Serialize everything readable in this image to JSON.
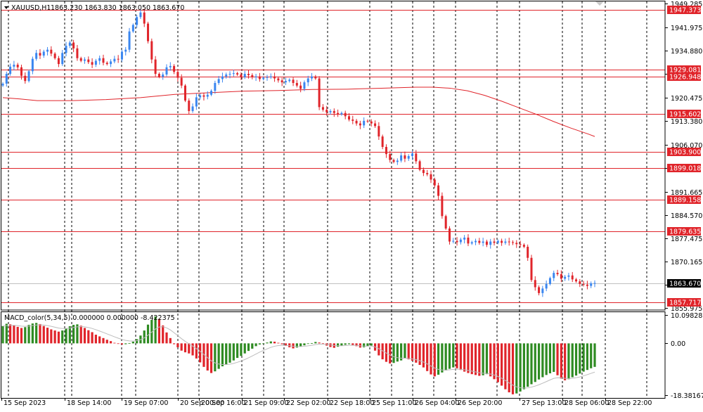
{
  "header": {
    "symbol": "XAUUSD,H1",
    "ohlc": "1863.230 1863.830 1863.050 1863.670"
  },
  "macd": {
    "label": "MACD_color(5,34,5) 0.000000 0.000000 -8.422375",
    "ticks": [
      "10.098283",
      "0.00",
      "-18.381675"
    ],
    "tick_values": [
      10.098283,
      0,
      -18.381675
    ],
    "ylim": [
      -19.5,
      11.4
    ],
    "histogram": [
      [
        6.2,
        7.0,
        6.8,
        6.4,
        5.9,
        5.5,
        5.8,
        6.6,
        7.1,
        7.3,
        6.9,
        6.2,
        5.6,
        5.0,
        4.6,
        4.2,
        4.6,
        5.4,
        6.1,
        6.6,
        6.8,
        6.3,
        5.5,
        4.7,
        4.0,
        3.1,
        2.5,
        1.9,
        1.3,
        0.8
      ],
      [
        0.2,
        -0.1,
        -0.4,
        -0.3,
        0.1,
        0.6,
        1.5,
        2.8,
        4.6,
        6.7,
        8.4,
        9.6,
        8.7,
        6.4,
        3.9,
        1.9
      ],
      [
        -0.3,
        -1.4,
        -2.6,
        -3.2,
        -3.6,
        -4.3,
        -5.4,
        -6.8,
        -8.4,
        -9.7,
        -10.6,
        -10.0,
        -9.1,
        -8.2,
        -7.6,
        -6.9,
        -6.1,
        -5.2,
        -4.5,
        -3.6,
        -2.7,
        -1.9,
        -1.0,
        -0.4,
        -0.1
      ],
      [
        0.3,
        0.7,
        0.6,
        0.2,
        -0.3,
        -0.9,
        -1.4,
        -1.8,
        -1.5,
        -1.1,
        -0.7,
        -0.2,
        0.1,
        0.5,
        0.3,
        -0.2,
        -0.8,
        -1.3,
        -1.6,
        -1.2,
        -0.8,
        -0.5,
        -0.3,
        -0.6,
        -1.0,
        -1.5,
        -1.4,
        -1.0
      ],
      [
        -0.8,
        -2.6,
        -4.3,
        -5.7,
        -6.6,
        -7.2,
        -7.0,
        -6.5,
        -6.1,
        -5.3,
        -5.7,
        -6.2,
        -6.9,
        -7.7,
        -8.6,
        -9.9,
        -11.1,
        -11.8,
        -11.2,
        -10.4,
        -9.7,
        -9.1,
        -8.6,
        -8.9,
        -9.5,
        -10.1,
        -10.6,
        -11.0,
        -11.3,
        -11.6,
        -11.4
      ],
      [
        -11.0,
        -11.8,
        -12.8,
        -13.9,
        -15.1,
        -16.4,
        -17.5,
        -18.2,
        -17.9,
        -17.2,
        -16.4,
        -15.5,
        -14.6,
        -13.8,
        -12.9,
        -12.1,
        -11.3,
        -10.7,
        -10.2,
        -11.4,
        -12.6,
        -13.2,
        -12.8,
        -12.1,
        -11.5,
        -10.8,
        -10.1,
        -9.5,
        -8.9,
        -8.4
      ]
    ]
  },
  "chart_data": {
    "type": "candlestick",
    "symbol": "XAUUSD",
    "timeframe": "H1",
    "y_ticks": [
      1949.285,
      1941.975,
      1934.88,
      1927.775,
      1920.475,
      1913.38,
      1906.07,
      1898.975,
      1891.665,
      1884.57,
      1877.475,
      1870.165,
      1863.07,
      1855.975
    ],
    "y_tick_labels": [
      "1949.285",
      "1941.975",
      "1934.880",
      "",
      "1920.475",
      "1913.380",
      "1906.070",
      "",
      "1891.665",
      "1884.570",
      "1877.475",
      "1870.165",
      "",
      "1855.975"
    ],
    "ylim": [
      1855.4,
      1950.0
    ],
    "x_labels": [
      "15 Sep 2023",
      "18 Sep 14:00",
      "19 Sep 07:00",
      "20 Sep 00:00",
      "20 Sep 16:00",
      "21 Sep 09:00",
      "22 Sep 02:00",
      "22 Sep 18:00",
      "25 Sep 11:00",
      "26 Sep 04:00",
      "26 Sep 20:00",
      "27 Sep 13:00",
      "28 Sep 06:00",
      "28 Sep 22:00"
    ],
    "levels": [
      1947.373,
      1929.081,
      1926.948,
      1915.602,
      1903.9,
      1899.018,
      1889.158,
      1879.635,
      1857.717
    ],
    "level_labels": [
      "1947.373",
      "1929.081",
      "1926.948",
      "1915.602",
      "1903.900",
      "1899.018",
      "1889.158",
      "1879.635",
      "1857.717"
    ],
    "current_price": 1863.67,
    "current_price_label": "1863.670",
    "path": [
      [
        1924.8,
        1927.8,
        1930.0,
        1930.6,
        1929.8,
        1927.2,
        1925.6,
        1928.6,
        1932.4,
        1934.2,
        1933.4,
        1934.6,
        1935.2,
        1934.0,
        1932.6,
        1930.8,
        1934.2,
        1936.4,
        1937.4,
        1935.6,
        1932.6,
        1931.8,
        1932.2,
        1931.4,
        1930.6,
        1931.8,
        1932.6,
        1931.2,
        1930.8,
        1931.6
      ],
      [
        1932.4,
        1932.2,
        1934.6,
        1935.2,
        1940.8,
        1942.8,
        1945.2,
        1946.6,
        1943.2,
        1937.8,
        1932.2,
        1927.8,
        1926.9,
        1927.6,
        1929.8,
        1930.2
      ],
      [
        1928.4,
        1926.6,
        1924.2,
        1919.6,
        1916.4,
        1917.8,
        1920.6,
        1921.2,
        1920.8,
        1921.4,
        1922.6,
        1925.0,
        1926.2,
        1927.0,
        1927.6,
        1927.8,
        1928.0,
        1927.6,
        1926.8,
        1927.8,
        1927.4,
        1926.8,
        1927.0,
        1926.2,
        1926.6
      ],
      [
        1926.8,
        1927.0,
        1926.4,
        1925.8,
        1925.2,
        1925.6,
        1926.0,
        1925.0,
        1924.2,
        1923.2,
        1925.2,
        1926.4,
        1927.0,
        1926.4,
        1917.6,
        1916.8,
        1916.0,
        1916.4,
        1915.8,
        1915.4,
        1915.8,
        1914.8,
        1913.8,
        1913.4,
        1912.6,
        1912.0,
        1913.4,
        1913.2
      ],
      [
        1912.6,
        1911.8,
        1908.6,
        1905.4,
        1903.2,
        1901.4,
        1900.8,
        1901.2,
        1902.8,
        1901.8,
        1902.6,
        1903.4,
        1901.0,
        1898.4,
        1897.4,
        1897.0,
        1895.4,
        1893.6,
        1890.4,
        1884.2,
        1880.4,
        1876.4,
        1876.6,
        1876.2,
        1877.0,
        1877.6,
        1875.8,
        1876.2,
        1876.6,
        1876.0,
        1876.4
      ],
      [
        1875.4,
        1876.4,
        1876.0,
        1876.6,
        1876.0,
        1876.4,
        1876.2,
        1876.0,
        1875.6,
        1875.4,
        1874.8,
        1871.4,
        1864.6,
        1862.4,
        1860.6,
        1862.0,
        1863.4,
        1865.2,
        1866.8,
        1866.4,
        1865.0,
        1865.6,
        1866.0,
        1864.8,
        1864.2,
        1863.4,
        1863.2,
        1862.8,
        1863.6,
        1863.7
      ]
    ],
    "moving_average": [
      [
        0,
        1920.5
      ],
      [
        10,
        1920.1
      ],
      [
        20,
        1919.6
      ],
      [
        40,
        1919.6
      ],
      [
        60,
        1919.9
      ],
      [
        80,
        1920.5
      ],
      [
        100,
        1921.5
      ],
      [
        120,
        1922.0
      ],
      [
        140,
        1922.5
      ],
      [
        160,
        1922.7
      ],
      [
        180,
        1923.0
      ],
      [
        200,
        1923.1
      ],
      [
        220,
        1923.4
      ],
      [
        240,
        1923.7
      ],
      [
        250,
        1923.7
      ],
      [
        260,
        1923.4
      ],
      [
        270,
        1922.6
      ],
      [
        280,
        1921.2
      ],
      [
        290,
        1919.4
      ],
      [
        300,
        1917.4
      ],
      [
        310,
        1915.4
      ],
      [
        320,
        1913.2
      ],
      [
        330,
        1911.2
      ],
      [
        340,
        1909.4
      ],
      [
        344,
        1908.6
      ]
    ]
  }
}
